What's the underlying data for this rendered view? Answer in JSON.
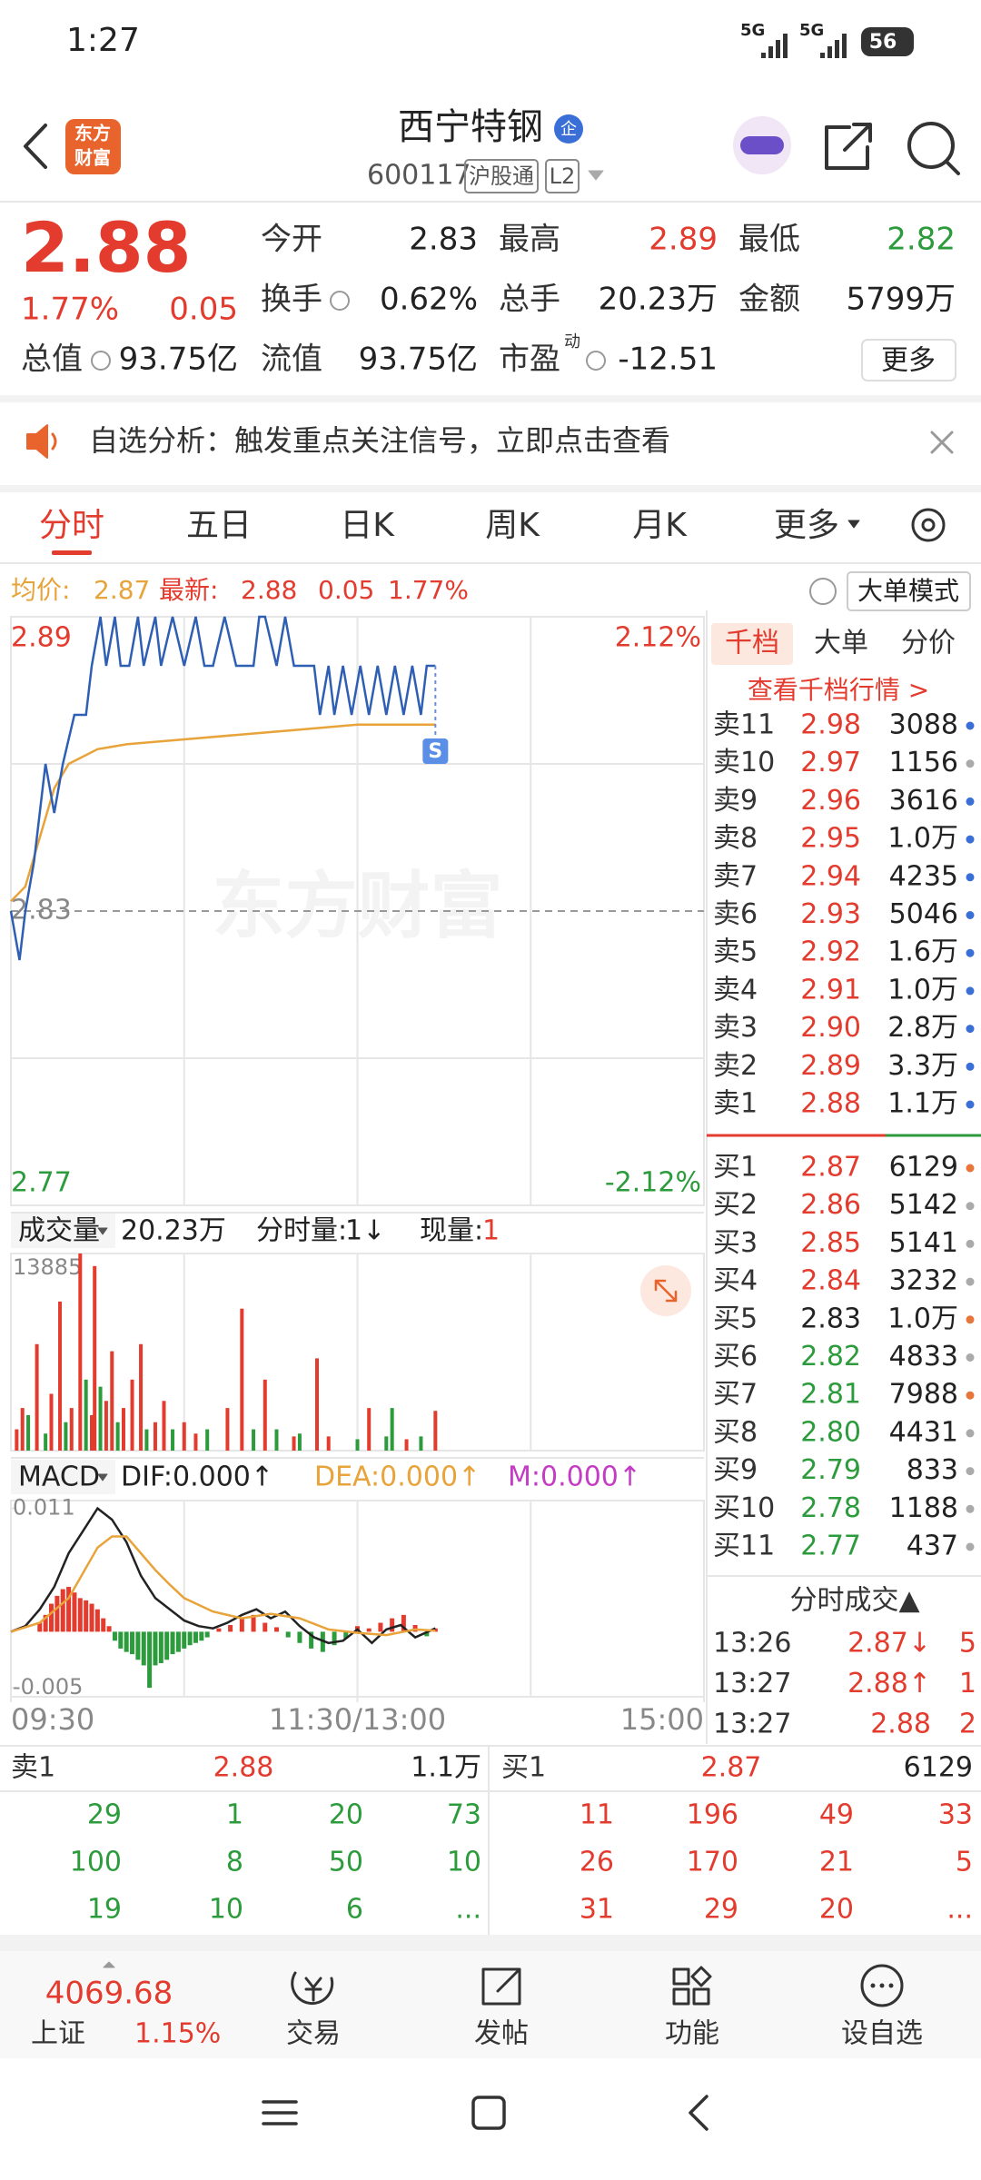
{
  "status_bar": {
    "time": "1:27",
    "network": [
      "5G",
      "5G"
    ],
    "battery": "56"
  },
  "header": {
    "brand": [
      "东方",
      "财富"
    ],
    "title": "西宁特钢",
    "badge": "企",
    "code": "600117",
    "tags": [
      "沪股通",
      "L2"
    ]
  },
  "quote": {
    "price": "2.88",
    "change_pct": "1.77%",
    "change": "0.05",
    "more": "更多",
    "rows": [
      [
        {
          "label": "今开",
          "value": "2.83",
          "color": "#222"
        },
        {
          "label": "最高",
          "value": "2.89",
          "color": "#e33b2e"
        },
        {
          "label": "最低",
          "value": "2.82",
          "color": "#2c9b3c"
        }
      ],
      [
        {
          "label": "换手",
          "value": "0.62%",
          "color": "#222"
        },
        {
          "label": "总手",
          "value": "20.23万",
          "color": "#222"
        },
        {
          "label": "金额",
          "value": "5799万",
          "color": "#222"
        }
      ],
      [
        {
          "label": "总值",
          "value": "93.75亿",
          "color": "#222"
        },
        {
          "label": "流值",
          "value": "93.75亿",
          "color": "#222"
        },
        {
          "label": "市盈",
          "sup": "动",
          "value": "-12.51",
          "color": "#222"
        }
      ]
    ]
  },
  "banner": {
    "text": "自选分析：触发重点关注信号，立即点击查看"
  },
  "tabs": {
    "items": [
      "分时",
      "五日",
      "日K",
      "周K",
      "月K",
      "更多"
    ],
    "active": 0
  },
  "info_line": {
    "avg_label": "均价:",
    "avg": "2.87",
    "last_label": "最新:",
    "last": "2.88",
    "change": "0.05",
    "change_pct": "1.77%",
    "mode": "大单模式"
  },
  "chart_data": [
    {
      "type": "line",
      "watermark": "东方财富",
      "marker": "S",
      "xlim": [
        0,
        240
      ],
      "ylim": [
        2.77,
        2.89
      ],
      "yticks": [
        2.89,
        2.83,
        2.77
      ],
      "ytick_colors": [
        "#e33b2e",
        "#888888",
        "#2c9b3c"
      ],
      "y2lim": [
        -2.12,
        2.12
      ],
      "y2ticks": [
        {
          "value": 2.12,
          "label": "2.12%"
        },
        {
          "value": -2.12,
          "label": "-2.12%"
        }
      ],
      "y2tick_colors": [
        "#e33b2e",
        "#2c9b3c"
      ],
      "series": [
        {
          "color": "#e8a33a",
          "x": [
            0,
            5,
            10,
            15,
            20,
            30,
            40,
            60,
            80,
            100,
            120,
            147
          ],
          "values": [
            2.832,
            2.835,
            2.845,
            2.855,
            2.86,
            2.863,
            2.864,
            2.865,
            2.866,
            2.867,
            2.868,
            2.868
          ]
        },
        {
          "color": "#2e5fb3",
          "x": [
            0,
            3,
            5,
            8,
            12,
            15,
            18,
            22,
            26,
            28,
            31,
            33,
            36,
            38,
            41,
            44,
            46,
            50,
            52,
            56,
            60,
            64,
            67,
            70,
            74,
            78,
            84,
            86,
            88,
            92,
            95,
            98,
            105,
            107,
            110,
            112,
            115,
            118,
            121,
            124,
            127,
            130,
            133,
            136,
            139,
            142,
            144,
            147
          ],
          "values": [
            2.83,
            2.82,
            2.83,
            2.84,
            2.86,
            2.85,
            2.86,
            2.87,
            2.87,
            2.88,
            2.89,
            2.88,
            2.89,
            2.88,
            2.88,
            2.89,
            2.88,
            2.89,
            2.88,
            2.89,
            2.88,
            2.89,
            2.88,
            2.88,
            2.89,
            2.88,
            2.88,
            2.89,
            2.89,
            2.88,
            2.89,
            2.88,
            2.88,
            2.87,
            2.88,
            2.87,
            2.88,
            2.87,
            2.88,
            2.87,
            2.88,
            2.87,
            2.88,
            2.87,
            2.88,
            2.87,
            2.88,
            2.88
          ]
        }
      ]
    },
    {
      "type": "bar",
      "indicator": "成交量",
      "total": "20.23万",
      "minute_volume_label": "分时量:",
      "minute_volume": "1↓",
      "current_volume_label": "现量:",
      "current_volume": "1",
      "xlim": [
        0,
        240
      ],
      "ylim": [
        0,
        13885
      ],
      "yticks": [
        13885
      ],
      "x": [
        2,
        4,
        6,
        9,
        12,
        14,
        17,
        19,
        21,
        24,
        26,
        28,
        29,
        31,
        33,
        35,
        37,
        39,
        42,
        45,
        47,
        50,
        53,
        56,
        60,
        64,
        68,
        75,
        80,
        84,
        88,
        92,
        98,
        100,
        106,
        110,
        120,
        124,
        130,
        132,
        137,
        142,
        147
      ],
      "values": [
        1500,
        3000,
        2500,
        7500,
        1200,
        4000,
        10500,
        2000,
        3000,
        13885,
        5000,
        2500,
        13000,
        4500,
        3500,
        7000,
        2000,
        3000,
        5000,
        7500,
        1500,
        2000,
        3500,
        1500,
        2000,
        1200,
        1500,
        3000,
        10000,
        1500,
        5000,
        1500,
        1000,
        1200,
        6500,
        1000,
        800,
        3000,
        1000,
        3000,
        800,
        1000,
        2800
      ],
      "colors": [
        "#e33b2e",
        "#e33b2e",
        "#2c9b3c",
        "#e33b2e",
        "#2c9b3c",
        "#e33b2e",
        "#e33b2e",
        "#2c9b3c",
        "#e33b2e",
        "#e33b2e",
        "#2c9b3c",
        "#e33b2e",
        "#e33b2e",
        "#2c9b3c",
        "#e33b2e",
        "#e33b2e",
        "#2c9b3c",
        "#e33b2e",
        "#e33b2e",
        "#e33b2e",
        "#2c9b3c",
        "#e33b2e",
        "#e33b2e",
        "#2c9b3c",
        "#e33b2e",
        "#e33b2e",
        "#2c9b3c",
        "#e33b2e",
        "#e33b2e",
        "#2c9b3c",
        "#e33b2e",
        "#2c9b3c",
        "#e33b2e",
        "#2c9b3c",
        "#e33b2e",
        "#e33b2e",
        "#2c9b3c",
        "#e33b2e",
        "#2c9b3c",
        "#2c9b3c",
        "#e33b2e",
        "#2c9b3c",
        "#e33b2e"
      ]
    },
    {
      "type": "macd",
      "indicator": "MACD",
      "xlim": [
        0,
        240
      ],
      "ylim": [
        -0.0058,
        0.0117
      ],
      "yticks": [
        0.011,
        -0.005
      ],
      "xticks": [
        {
          "value": 0,
          "label": "09:30"
        },
        {
          "value": 120,
          "label": "11:30/13:00"
        },
        {
          "value": 240,
          "label": "15:00"
        }
      ],
      "up_color": "#e33b2e",
      "down_color": "#2c9b3c",
      "histogram": {
        "label": "M:0.000↑",
        "label_color": "#c33cc3",
        "x": [
          10,
          12,
          14,
          16,
          18,
          20,
          22,
          24,
          26,
          28,
          30,
          32,
          34,
          36,
          38,
          40,
          42,
          44,
          46,
          48,
          50,
          52,
          54,
          56,
          58,
          60,
          62,
          64,
          66,
          68,
          72,
          76,
          80,
          84,
          88,
          92,
          96,
          100,
          104,
          108,
          112,
          116,
          120,
          124,
          128,
          132,
          136,
          140,
          144,
          147
        ],
        "values": [
          0.0008,
          0.0015,
          0.0025,
          0.0032,
          0.0038,
          0.004,
          0.0035,
          0.003,
          0.0028,
          0.0025,
          0.002,
          0.0012,
          0.0005,
          -0.0008,
          -0.0015,
          -0.0018,
          -0.002,
          -0.0025,
          -0.003,
          -0.005,
          -0.003,
          -0.0028,
          -0.0025,
          -0.002,
          -0.0018,
          -0.0015,
          -0.0012,
          -0.001,
          -0.0008,
          -0.0005,
          0.0003,
          0.0006,
          0.0012,
          0.0015,
          0.0008,
          0.0004,
          -0.0005,
          -0.001,
          -0.0015,
          -0.0018,
          -0.0012,
          -0.0006,
          0.0005,
          0.0003,
          0.0008,
          0.0012,
          0.0015,
          0.0006,
          -0.0004,
          0.0003
        ]
      },
      "series": [
        {
          "label": "DIF:0.000↑",
          "color": "#222222",
          "x": [
            0,
            5,
            10,
            15,
            20,
            25,
            30,
            35,
            40,
            45,
            50,
            55,
            60,
            65,
            70,
            75,
            80,
            85,
            90,
            95,
            100,
            105,
            110,
            115,
            120,
            125,
            130,
            135,
            140,
            147
          ],
          "values": [
            0,
            0.0005,
            0.002,
            0.004,
            0.007,
            0.009,
            0.011,
            0.01,
            0.008,
            0.005,
            0.003,
            0.002,
            0.001,
            0.0005,
            0.0003,
            0.0008,
            0.0015,
            0.002,
            0.0012,
            0.0018,
            0.0005,
            -0.0005,
            -0.001,
            -0.0008,
            0.0002,
            -0.001,
            0.0002,
            0.0006,
            -0.0005,
            0.0003
          ]
        },
        {
          "label": "DEA:0.000↑",
          "color": "#e8a33a",
          "x": [
            0,
            10,
            20,
            30,
            35,
            40,
            45,
            50,
            55,
            60,
            70,
            80,
            90,
            100,
            110,
            120,
            130,
            140,
            147
          ],
          "values": [
            0,
            0.0008,
            0.003,
            0.0075,
            0.0085,
            0.0085,
            0.007,
            0.0055,
            0.0042,
            0.003,
            0.0018,
            0.0012,
            0.0016,
            0.0012,
            0.0002,
            -0.0001,
            -0.0003,
            0.0002,
            0.0001
          ]
        }
      ]
    }
  ],
  "order_book": {
    "tabs": [
      "千档",
      "大单",
      "分价"
    ],
    "link": "查看千档行情 >",
    "asks": [
      {
        "label": "卖11",
        "price": "2.98",
        "volume": "3088",
        "color": "#e33b2e",
        "dot": "#3a6fd8"
      },
      {
        "label": "卖10",
        "price": "2.97",
        "volume": "1156",
        "color": "#e33b2e",
        "dot": "#aaaaaa"
      },
      {
        "label": "卖9",
        "price": "2.96",
        "volume": "3616",
        "color": "#e33b2e",
        "dot": "#3a6fd8"
      },
      {
        "label": "卖8",
        "price": "2.95",
        "volume": "1.0万",
        "color": "#e33b2e",
        "dot": "#3a6fd8"
      },
      {
        "label": "卖7",
        "price": "2.94",
        "volume": "4235",
        "color": "#e33b2e",
        "dot": "#3a6fd8"
      },
      {
        "label": "卖6",
        "price": "2.93",
        "volume": "5046",
        "color": "#e33b2e",
        "dot": "#3a6fd8"
      },
      {
        "label": "卖5",
        "price": "2.92",
        "volume": "1.6万",
        "color": "#e33b2e",
        "dot": "#3a6fd8"
      },
      {
        "label": "卖4",
        "price": "2.91",
        "volume": "1.0万",
        "color": "#e33b2e",
        "dot": "#3a6fd8"
      },
      {
        "label": "卖3",
        "price": "2.90",
        "volume": "2.8万",
        "color": "#e33b2e",
        "dot": "#3a6fd8"
      },
      {
        "label": "卖2",
        "price": "2.89",
        "volume": "3.3万",
        "color": "#e33b2e",
        "dot": "#3a6fd8"
      },
      {
        "label": "卖1",
        "price": "2.88",
        "volume": "1.1万",
        "color": "#e33b2e",
        "dot": "#3a6fd8"
      }
    ],
    "bids": [
      {
        "label": "买1",
        "price": "2.87",
        "volume": "6129",
        "color": "#e33b2e",
        "dot": "#e8763a"
      },
      {
        "label": "买2",
        "price": "2.86",
        "volume": "5142",
        "color": "#e33b2e",
        "dot": "#aaaaaa"
      },
      {
        "label": "买3",
        "price": "2.85",
        "volume": "5141",
        "color": "#e33b2e",
        "dot": "#aaaaaa"
      },
      {
        "label": "买4",
        "price": "2.84",
        "volume": "3232",
        "color": "#e33b2e",
        "dot": "#aaaaaa"
      },
      {
        "label": "买5",
        "price": "2.83",
        "volume": "1.0万",
        "color": "#222222",
        "dot": "#e8763a"
      },
      {
        "label": "买6",
        "price": "2.82",
        "volume": "4833",
        "color": "#2c9b3c",
        "dot": "#aaaaaa"
      },
      {
        "label": "买7",
        "price": "2.81",
        "volume": "7988",
        "color": "#2c9b3c",
        "dot": "#e8763a"
      },
      {
        "label": "买8",
        "price": "2.80",
        "volume": "4431",
        "color": "#2c9b3c",
        "dot": "#aaaaaa"
      },
      {
        "label": "买9",
        "price": "2.79",
        "volume": "833",
        "color": "#2c9b3c",
        "dot": "#aaaaaa"
      },
      {
        "label": "买10",
        "price": "2.78",
        "volume": "1188",
        "color": "#2c9b3c",
        "dot": "#aaaaaa"
      },
      {
        "label": "买11",
        "price": "2.77",
        "volume": "437",
        "color": "#2c9b3c",
        "dot": "#aaaaaa"
      }
    ],
    "trades_title": "分时成交▲",
    "trades": [
      {
        "time": "13:26",
        "price": "2.87↓",
        "volume": "5"
      },
      {
        "time": "13:27",
        "price": "2.88↑",
        "volume": "1"
      },
      {
        "time": "13:27",
        "price": "2.88",
        "volume": "2"
      }
    ]
  },
  "queue": {
    "ask": {
      "label": "卖1",
      "price": "2.88",
      "volume": "1.1万",
      "rows": [
        [
          "29",
          "1",
          "20",
          "73"
        ],
        [
          "100",
          "8",
          "50",
          "10"
        ],
        [
          "19",
          "10",
          "6",
          "..."
        ]
      ]
    },
    "bid": {
      "label": "买1",
      "price": "2.87",
      "volume": "6129",
      "rows": [
        [
          "11",
          "196",
          "49",
          "33"
        ],
        [
          "26",
          "170",
          "21",
          "5"
        ],
        [
          "31",
          "29",
          "20",
          "..."
        ]
      ]
    }
  },
  "bottom_nav": {
    "index_value": "4069.68",
    "index_name": "上证",
    "index_change": "1.15%",
    "items": [
      "交易",
      "发帖",
      "功能",
      "设自选"
    ]
  }
}
